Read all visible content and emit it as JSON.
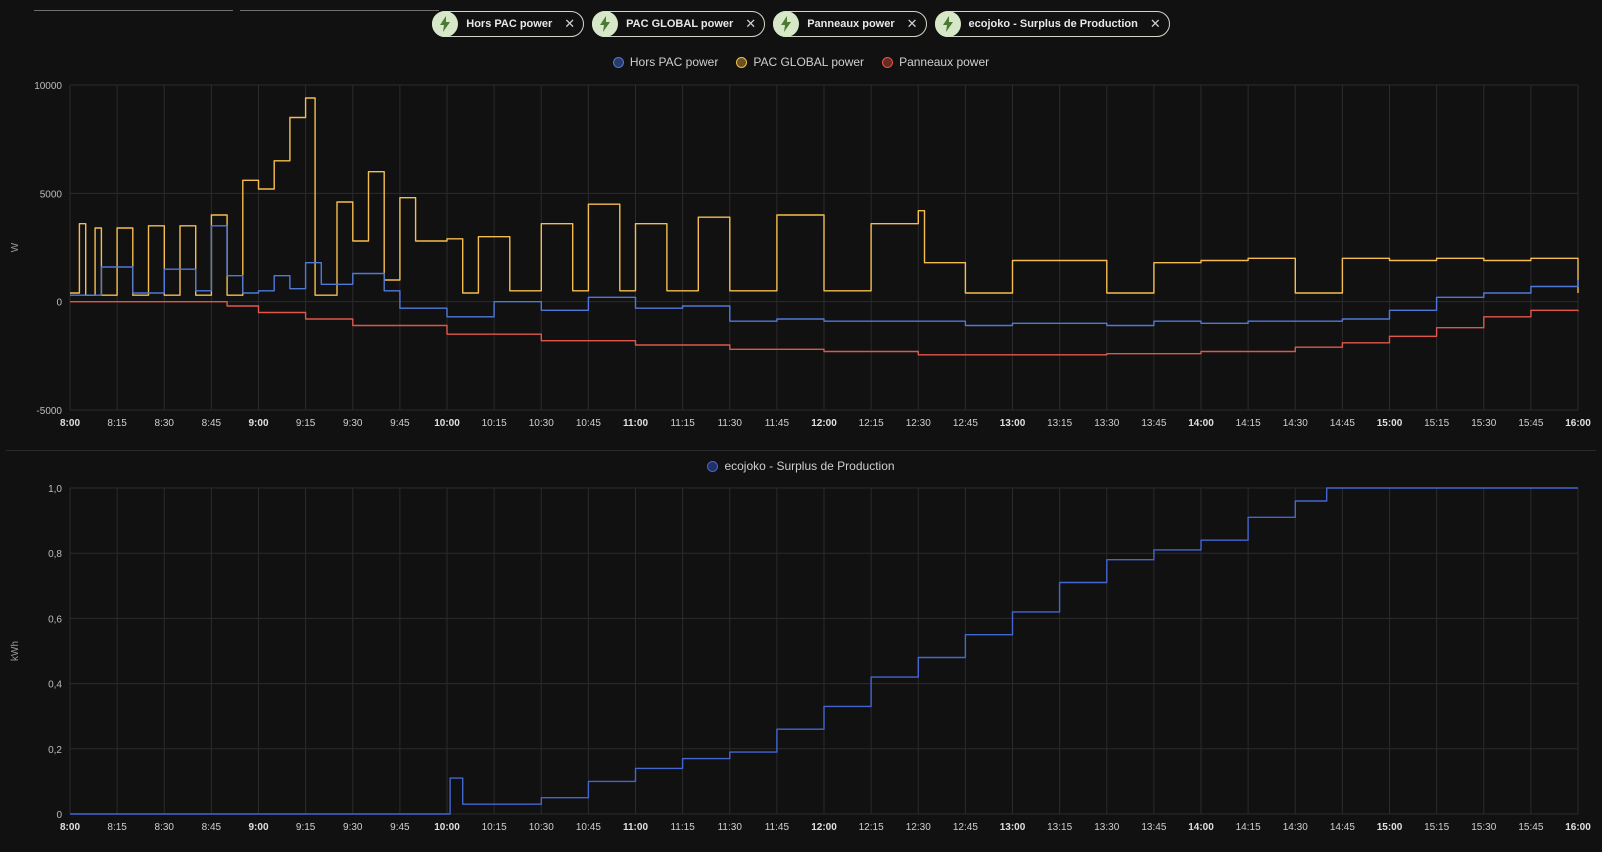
{
  "filters": [
    {
      "label": "Hors PAC power"
    },
    {
      "label": "PAC GLOBAL power"
    },
    {
      "label": "Panneaux power"
    },
    {
      "label": "ecojoko - Surplus de Production"
    }
  ],
  "colors": {
    "hors_pac": "#4f79d9",
    "pac_global": "#f5bd4f",
    "panneaux": "#e0574a",
    "surplus": "#4466d0",
    "chip_icon": "#4a7a34"
  },
  "chart_data": [
    {
      "type": "line",
      "ylabel": "W",
      "ylim": [
        -5000,
        10000
      ],
      "y_ticks": [
        "10000",
        "5000",
        "0",
        "-5000"
      ],
      "x_range_hours": [
        8,
        16
      ],
      "x_ticks": [
        "8:00",
        "8:15",
        "8:30",
        "8:45",
        "9:00",
        "9:15",
        "9:30",
        "9:45",
        "10:00",
        "10:15",
        "10:30",
        "10:45",
        "11:00",
        "11:15",
        "11:30",
        "11:45",
        "12:00",
        "12:15",
        "12:30",
        "12:45",
        "13:00",
        "13:15",
        "13:30",
        "13:45",
        "14:00",
        "14:15",
        "14:30",
        "14:45",
        "15:00",
        "15:15",
        "15:30",
        "15:45",
        "16:00"
      ],
      "legend": [
        "Hors PAC power",
        "PAC GLOBAL power",
        "Panneaux power"
      ],
      "grid": true,
      "series": [
        {
          "name": "Panneaux power",
          "x": [
            "8:00",
            "8:45",
            "8:50",
            "9:00",
            "9:15",
            "9:30",
            "10:00",
            "10:30",
            "11:00",
            "11:30",
            "12:00",
            "12:30",
            "13:00",
            "13:30",
            "14:00",
            "14:30",
            "14:45",
            "15:00",
            "15:15",
            "15:30",
            "15:45",
            "16:00"
          ],
          "values": [
            0,
            0,
            -200,
            -500,
            -800,
            -1100,
            -1500,
            -1800,
            -2000,
            -2200,
            -2300,
            -2450,
            -2450,
            -2400,
            -2300,
            -2100,
            -1900,
            -1600,
            -1200,
            -700,
            -400,
            -450
          ]
        },
        {
          "name": "PAC GLOBAL power",
          "x": [
            "8:00",
            "8:03",
            "8:05",
            "8:08",
            "8:10",
            "8:15",
            "8:20",
            "8:25",
            "8:30",
            "8:35",
            "8:40",
            "8:45",
            "8:50",
            "8:55",
            "9:00",
            "9:05",
            "9:10",
            "9:15",
            "9:17",
            "9:18",
            "9:25",
            "9:30",
            "9:35",
            "9:40",
            "9:45",
            "9:50",
            "10:00",
            "10:05",
            "10:10",
            "10:20",
            "10:30",
            "10:40",
            "10:45",
            "10:55",
            "11:00",
            "11:10",
            "11:20",
            "11:30",
            "11:45",
            "12:00",
            "12:15",
            "12:30",
            "12:32",
            "12:40",
            "12:45",
            "13:00",
            "13:15",
            "13:30",
            "13:45",
            "14:00",
            "14:15",
            "14:30",
            "14:45",
            "15:00",
            "15:15",
            "15:30",
            "15:45",
            "16:00"
          ],
          "values": [
            400,
            3600,
            300,
            3400,
            300,
            3400,
            300,
            3500,
            300,
            3500,
            300,
            4000,
            300,
            5600,
            5200,
            6500,
            8500,
            9400,
            9400,
            300,
            4600,
            2800,
            6000,
            1000,
            4800,
            2800,
            2900,
            400,
            3000,
            500,
            3600,
            500,
            4500,
            500,
            3600,
            500,
            3900,
            500,
            4000,
            500,
            3600,
            4200,
            1800,
            1800,
            400,
            1900,
            1900,
            400,
            1800,
            1900,
            2000,
            400,
            2000,
            1900,
            2000,
            1900,
            2000,
            400
          ]
        },
        {
          "name": "Hors PAC power",
          "x": [
            "8:00",
            "8:10",
            "8:20",
            "8:30",
            "8:40",
            "8:45",
            "8:50",
            "8:55",
            "9:00",
            "9:05",
            "9:10",
            "9:15",
            "9:20",
            "9:30",
            "9:40",
            "9:45",
            "10:00",
            "10:15",
            "10:30",
            "10:45",
            "11:00",
            "11:15",
            "11:30",
            "11:45",
            "12:00",
            "12:15",
            "12:30",
            "12:45",
            "13:00",
            "13:15",
            "13:30",
            "13:45",
            "14:00",
            "14:15",
            "14:30",
            "14:45",
            "15:00",
            "15:15",
            "15:30",
            "15:45",
            "16:00"
          ],
          "values": [
            300,
            1600,
            400,
            1500,
            500,
            3500,
            1200,
            400,
            500,
            1200,
            600,
            1800,
            800,
            1300,
            500,
            -300,
            -700,
            0,
            -400,
            200,
            -300,
            -200,
            -900,
            -800,
            -900,
            -900,
            -900,
            -1100,
            -1000,
            -1000,
            -1100,
            -900,
            -1000,
            -900,
            -900,
            -800,
            -400,
            200,
            400,
            700,
            1000
          ]
        }
      ]
    },
    {
      "type": "line",
      "ylabel": "kWh",
      "ylim": [
        0,
        1
      ],
      "y_ticks": [
        "1,0",
        "0,8",
        "0,6",
        "0,4",
        "0,2",
        "0"
      ],
      "x_range_hours": [
        8,
        16
      ],
      "x_ticks": [
        "8:00",
        "8:15",
        "8:30",
        "8:45",
        "9:00",
        "9:15",
        "9:30",
        "9:45",
        "10:00",
        "10:15",
        "10:30",
        "10:45",
        "11:00",
        "11:15",
        "11:30",
        "11:45",
        "12:00",
        "12:15",
        "12:30",
        "12:45",
        "13:00",
        "13:15",
        "13:30",
        "13:45",
        "14:00",
        "14:15",
        "14:30",
        "14:45",
        "15:00",
        "15:15",
        "15:30",
        "15:45",
        "16:00"
      ],
      "legend": [
        "ecojoko - Surplus de Production"
      ],
      "grid": true,
      "series": [
        {
          "name": "ecojoko - Surplus de Production",
          "x": [
            "8:00",
            "10:00",
            "10:01",
            "10:04",
            "10:05",
            "10:30",
            "10:45",
            "11:00",
            "11:15",
            "11:30",
            "11:45",
            "12:00",
            "12:15",
            "12:30",
            "12:45",
            "13:00",
            "13:15",
            "13:30",
            "13:45",
            "14:00",
            "14:15",
            "14:30",
            "14:40",
            "15:00",
            "15:30",
            "16:00"
          ],
          "values": [
            0,
            0,
            0.11,
            0.11,
            0.03,
            0.05,
            0.1,
            0.14,
            0.17,
            0.19,
            0.26,
            0.33,
            0.42,
            0.48,
            0.55,
            0.62,
            0.71,
            0.78,
            0.81,
            0.84,
            0.91,
            0.96,
            1.0,
            1.0,
            1.0,
            1.0
          ]
        }
      ]
    }
  ]
}
